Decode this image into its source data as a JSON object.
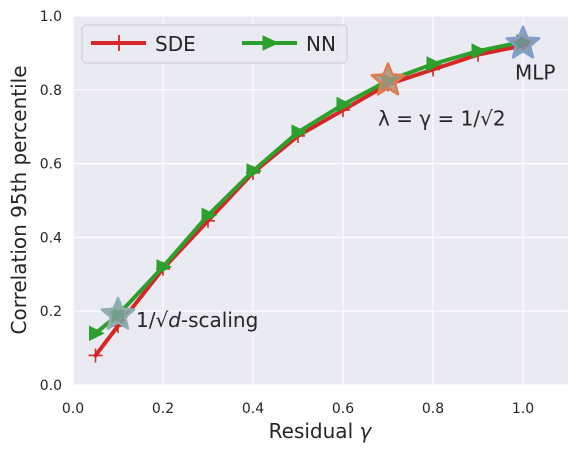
{
  "chart_data": {
    "type": "line",
    "xlabel_main": "Residual ",
    "xlabel_symbol": "γ",
    "ylabel": "Correlation 95th percentile",
    "xlim": [
      0.0,
      1.1
    ],
    "ylim": [
      0.0,
      1.0
    ],
    "x_ticks": [
      0.0,
      0.2,
      0.4,
      0.6,
      0.8,
      1.0
    ],
    "x_tick_labels": [
      "0.0",
      "0.2",
      "0.4",
      "0.6",
      "0.8",
      "1.0"
    ],
    "y_ticks": [
      0.0,
      0.2,
      0.4,
      0.6,
      0.8,
      1.0
    ],
    "y_tick_labels": [
      "0.0",
      "0.2",
      "0.4",
      "0.6",
      "0.8",
      "1.0"
    ],
    "grid": true,
    "legend_position": "top-left",
    "legend_columns": 2,
    "series": [
      {
        "name": "SDE",
        "color": "#d62728",
        "marker": "plus",
        "x": [
          0.05,
          0.1,
          0.2,
          0.3,
          0.4,
          0.5,
          0.6,
          0.7,
          0.8,
          0.9,
          1.0
        ],
        "y": [
          0.08,
          0.16,
          0.315,
          0.445,
          0.575,
          0.675,
          0.745,
          0.815,
          0.855,
          0.895,
          0.92
        ]
      },
      {
        "name": "NN",
        "color": "#2ca02c",
        "marker": "triangle-right",
        "x": [
          0.05,
          0.1,
          0.2,
          0.3,
          0.4,
          0.5,
          0.6,
          0.7,
          0.8,
          0.9,
          1.0
        ],
        "y": [
          0.14,
          0.19,
          0.32,
          0.46,
          0.58,
          0.685,
          0.76,
          0.825,
          0.87,
          0.905,
          0.93
        ]
      }
    ],
    "highlights": [
      {
        "x": 0.1,
        "y": 0.19,
        "fill": "#7f9f9f",
        "stroke": "#8fb0b0",
        "label_main": "1/√",
        "label_italic": "d",
        "label_suffix": "-scaling"
      },
      {
        "x": 0.7,
        "y": 0.825,
        "fill": "#a89384",
        "stroke": "#e07b4a",
        "label_main": "λ = γ = 1/√2",
        "label_italic": "",
        "label_suffix": ""
      },
      {
        "x": 1.0,
        "y": 0.925,
        "fill": "#7f8c9f",
        "stroke": "#7f9fcf",
        "label_main": "MLP",
        "label_italic": "",
        "label_suffix": ""
      }
    ]
  }
}
